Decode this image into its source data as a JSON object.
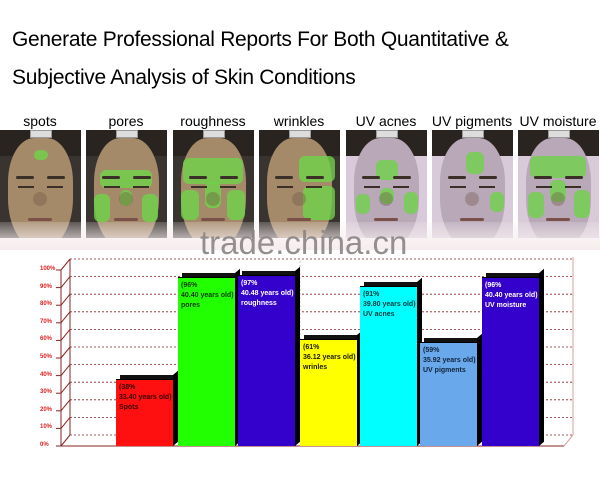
{
  "header": {
    "title_line1": "Generate Professional Reports For Both Quantitative &",
    "title_line2": "Subjective Analysis of Skin Conditions"
  },
  "faces": [
    {
      "label": "spots",
      "mode": "normal"
    },
    {
      "label": "pores",
      "mode": "normal"
    },
    {
      "label": "roughness",
      "mode": "normal"
    },
    {
      "label": "wrinkles",
      "mode": "normal"
    },
    {
      "label": "UV acnes",
      "mode": "uv"
    },
    {
      "label": "UV pigments",
      "mode": "uv"
    },
    {
      "label": "UV moisture",
      "mode": "uv"
    }
  ],
  "watermark": "trade.china.cn",
  "chart_data": {
    "type": "bar",
    "title": "",
    "xlabel": "",
    "ylabel": "",
    "ylim": [
      0,
      100
    ],
    "y_ticks": [
      "0%",
      "10%",
      "20%",
      "30%",
      "40%",
      "50%",
      "60%",
      "70%",
      "80%",
      "90%",
      "100%"
    ],
    "grid": true,
    "style": "3d",
    "legend": "none",
    "categories": [
      "spots",
      "pores",
      "roughness",
      "wrinkles",
      "UV acnes",
      "UV pigments",
      "UV moisture"
    ],
    "values": [
      38,
      96,
      97,
      61,
      91,
      59,
      96
    ],
    "ages": [
      33.4,
      40.4,
      40.48,
      36.12,
      39.8,
      35.92,
      40.4
    ],
    "colors": [
      "#ff1010",
      "#22ff00",
      "#3300cc",
      "#ffff00",
      "#00ffff",
      "#6aa8ec",
      "#3300cc"
    ],
    "data_labels": [
      {
        "line1": "(38%",
        "line2": "33.40 years old)",
        "line3": "Spots"
      },
      {
        "line1": "(96%",
        "line2": "40.40 years old)",
        "line3": "pores"
      },
      {
        "line1": "(97%",
        "line2": "40.48 years old)",
        "line3": "roughness"
      },
      {
        "line1": "(61%",
        "line2": "36.12 years old)",
        "line3": "wrinles"
      },
      {
        "line1": "(91%",
        "line2": "39.80 years old)",
        "line3": "UV acnes"
      },
      {
        "line1": "(59%",
        "line2": "35.92 years old)",
        "line3": "UV pigments"
      },
      {
        "line1": "(96%",
        "line2": "40.40 years old)",
        "line3": "UV moisture"
      }
    ]
  }
}
